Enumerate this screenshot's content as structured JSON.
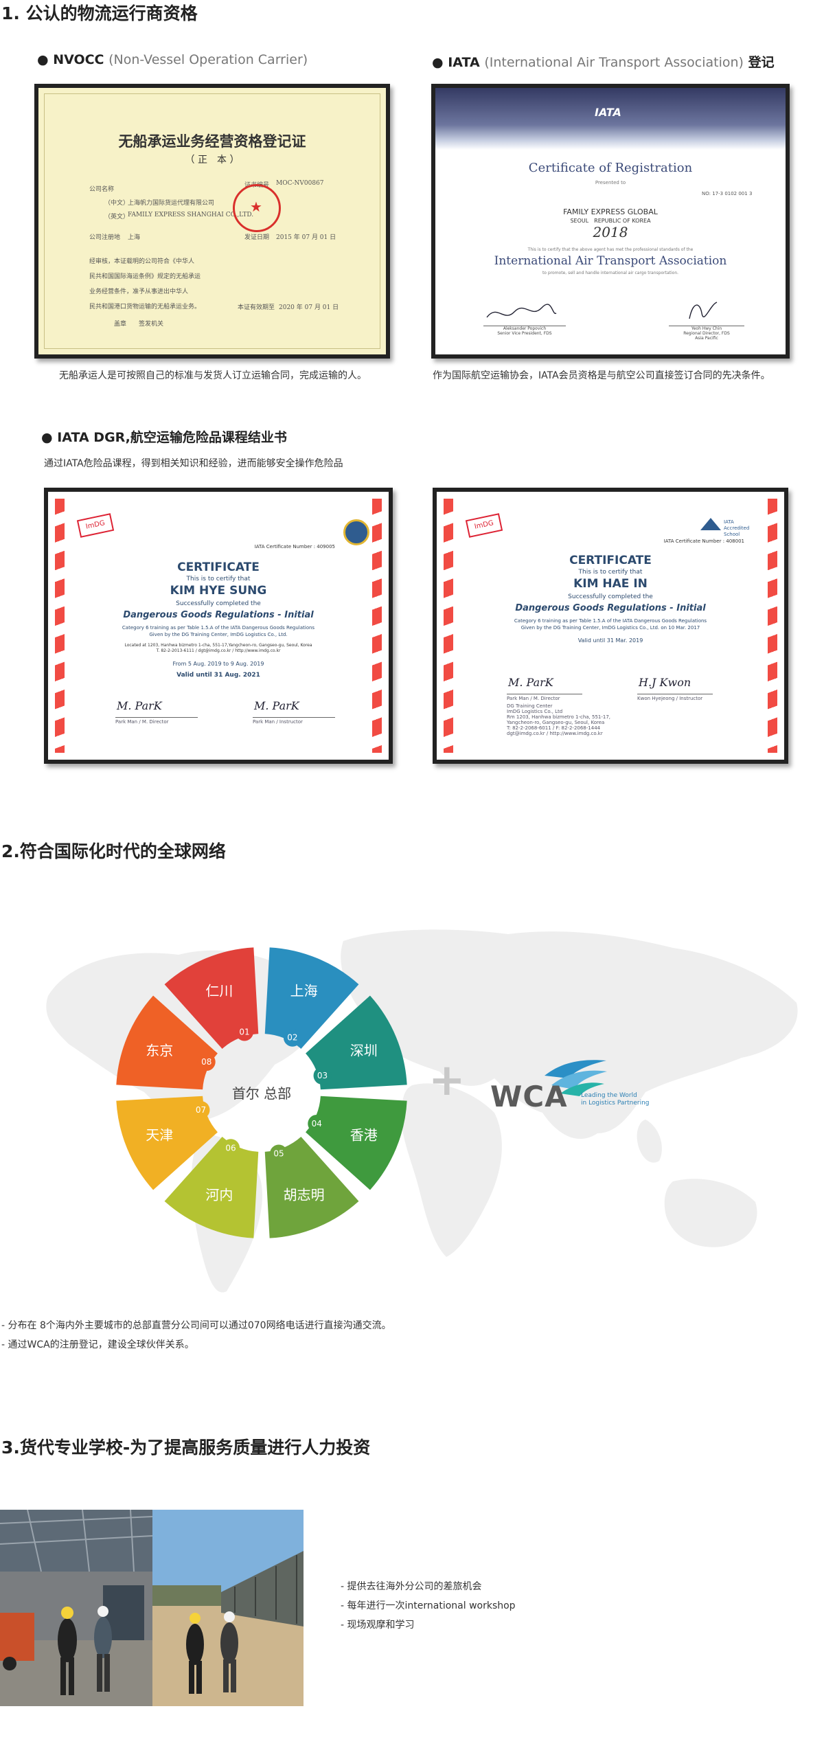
{
  "sections": {
    "s1": {
      "title": "1. 公认的物流运行商资格",
      "nvocc": {
        "heading": "● NVOCC",
        "heading_sub": "(Non-Vessel Operation Carrier)",
        "caption": "无船承运人是可按照自己的标准与发货人订立运输合同，完成运输的人。",
        "cert": {
          "title": "无船承运业务经营资格登记证",
          "subtitle": "（ 正　本 ）",
          "company_label": "公司名称",
          "cn_label": "（中文）",
          "cn_name": "上海帆力国际货运代理有限公司",
          "en_label": "（英文）",
          "en_name": "FAMILY EXPRESS SHANGHAI CO.,LTD.",
          "reg_no_label": "证书编号",
          "reg_no": "MOC-NV00867",
          "address_label": "公司注册地",
          "address": "上海",
          "issue_label": "发证日期",
          "issue_date": "2015 年 07 月 01 日",
          "body": [
            "经审核，本证载明的公司符合《中华人",
            "民共和国国际海运条例》规定的无船承运",
            "业务经营条件，准予从事进出中华人",
            "民共和国港口货物运输的无船承运业务。"
          ],
          "valid_label": "本证有效期至",
          "valid_date": "2020 年 07 月 01 日",
          "footer": "盖章　　签发机关",
          "stamp_char": "★"
        }
      },
      "iata": {
        "heading": "● IATA",
        "heading_sub": "(International Air Transport Association)",
        "heading_suffix": "登记",
        "caption": "作为国际航空运输协会，IATA会员资格是与航空公司直接签订合同的先决条件。",
        "cert": {
          "logo": "IATA",
          "title": "Certificate of Registration",
          "presented": "Presented to",
          "no": "NO: 17-3 0102 001 3",
          "company": "FAMILY EXPRESS GLOBAL",
          "city": "SEOUL　REPUBLIC OF KOREA",
          "year": "2018",
          "line": "This is to certify that the above agent has met the professional standards of the",
          "org": "International Air Transport Association",
          "line2": "to promote, sell and handle international air cargo transportation.",
          "sig1_name": "Aleksander Popovich",
          "sig1_role": "Senior Vice President, FDS",
          "sig2_name": "Yeoh Hwy Chin",
          "sig2_role": "Regional Director, FDS",
          "sig2_region": "Asia Pacific"
        }
      },
      "dgr": {
        "heading": "● IATA DGR,航空运输危险品课程结业书",
        "caption": "通过IATA危险品课程，得到相关知识和经验，进而能够安全操作危险品",
        "cert1": {
          "logo": "ImDG",
          "number": "IATA Certificate Number : 409005",
          "title": "CERTIFICATE",
          "certify": "This is to certify that",
          "name": "KIM HYE SUNG",
          "completed": "Successfully completed the",
          "course": "Dangerous Goods Regulations - Initial",
          "cat": "Category 6 training as per Table 1.5.A of the IATA Dangerous Goods Regulations",
          "given": "Given by the DG Training Center, ImDG Logistics Co., Ltd.",
          "loc": "Located at 1203, Hanhwa bizmetro 1-cha, 551-17,Yangcheon-ro, Gangseo-gu, Seoul, Korea",
          "tel": "T. 82-2-2013-6111 / dgt@imdg.co.kr / http://www.imdg.co.kr",
          "from": "From 5 Aug. 2019 to 9 Aug. 2019",
          "valid": "Valid until 31 Aug. 2021",
          "sig1": "M. ParK",
          "sig1_role": "Park Man / M. Director",
          "sig2": "M. ParK",
          "sig2_role": "Park Man / Instructor"
        },
        "cert2": {
          "logo": "ImDG",
          "accredited": "IATA Accredited School",
          "number": "IATA Certificate Number : 408001",
          "title": "CERTIFICATE",
          "certify": "This is to certify that",
          "name": "KIM HAE IN",
          "completed": "Successfully completed the",
          "course": "Dangerous Goods Regulations - Initial",
          "cat": "Category 6 training as per Table 1.5.A of the IATA Dangerous Goods Regulations",
          "given": "Given by the DG Training Center, ImDG Logistics Co., Ltd. on 10 Mar. 2017",
          "valid": "Valid until 31 Mar. 2019",
          "sig1": "M. ParK",
          "sig1_role": "Park Man / M. Director",
          "sig2": "H.J Kwon",
          "sig2_role": "Kwon Hyejeong / Instructor",
          "center": "DG Training Center",
          "company": "ImDG Logistics Co., Ltd",
          "addr": "Rm 1203, Hanhwa bizmetro 1-cha, 551-17,",
          "addr2": "Yangcheon-ro, Gangseo-gu, Seoul, Korea",
          "contact": "T: 82-2-2068-6011 / F: 82-2-2068-1444",
          "contact2": "dgt@imdg.co.kr / http://www.imdg.co.kr"
        }
      }
    },
    "s2": {
      "title": "2.符合国际化时代的全球网络",
      "center": "首尔 总部",
      "cities": [
        {
          "num": "01",
          "name": "仁川",
          "color": "#e1413a"
        },
        {
          "num": "02",
          "name": "上海",
          "color": "#2a8fbf"
        },
        {
          "num": "03",
          "name": "深圳",
          "color": "#1f9080"
        },
        {
          "num": "04",
          "name": "香港",
          "color": "#3f9a3e"
        },
        {
          "num": "05",
          "name": "胡志明",
          "color": "#6fa43c"
        },
        {
          "num": "06",
          "name": "河内",
          "color": "#b4c332"
        },
        {
          "num": "07",
          "name": "天津",
          "color": "#f1b024"
        },
        {
          "num": "08",
          "name": "东京",
          "color": "#ef6126"
        }
      ],
      "plus": "+",
      "wca": {
        "logo": "WCA",
        "tag1": "Leading the World",
        "tag2": "in Logistics Partnering"
      },
      "notes": [
        "- 分布在 8个海内外主要城市的总部直营分公司间可以通过070网络电话进行直接沟通交流。",
        "- 通过WCA的注册登记，建设全球伙伴关系。"
      ]
    },
    "s3": {
      "title": "3.货代专业学校-为了提高服务质量进行人力投资",
      "bullets": [
        "- 提供去往海外分公司的差旅机会",
        "- 每年进行一次international workshop",
        "- 现场观摩和学习"
      ]
    }
  }
}
